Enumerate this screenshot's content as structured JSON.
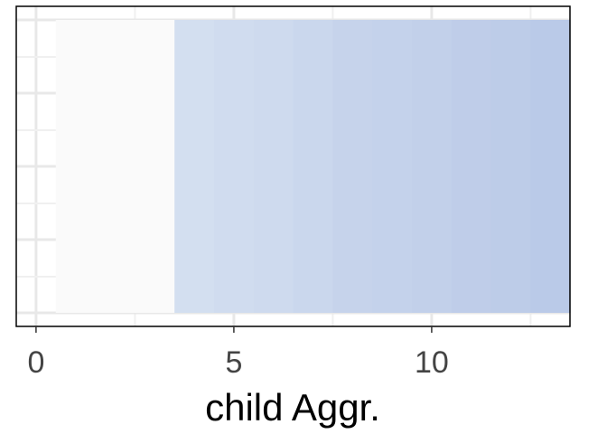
{
  "chart_data": {
    "type": "heatmap",
    "title": "",
    "xlabel": "child Aggr.",
    "ylabel": "",
    "xlim": [
      -0.5,
      14
    ],
    "x_ticks": [
      0,
      5,
      10
    ],
    "x_tick_labels": [
      "0",
      "5",
      "10"
    ],
    "grid": true,
    "legend": "none",
    "cells": [
      {
        "x": 1,
        "fill": "#fafafa"
      },
      {
        "x": 2,
        "fill": "#fafafa"
      },
      {
        "x": 3,
        "fill": "#fafafa"
      },
      {
        "x": 4,
        "fill": "#d3dff0"
      },
      {
        "x": 5,
        "fill": "#d0dcef"
      },
      {
        "x": 6,
        "fill": "#cedaee"
      },
      {
        "x": 7,
        "fill": "#cad7ed"
      },
      {
        "x": 8,
        "fill": "#c6d3eb"
      },
      {
        "x": 9,
        "fill": "#c4d2eb"
      },
      {
        "x": 10,
        "fill": "#c2d0ea"
      },
      {
        "x": 11,
        "fill": "#bfcde9"
      },
      {
        "x": 12,
        "fill": "#bdcce8"
      },
      {
        "x": 13,
        "fill": "#bacae8"
      }
    ],
    "colors": {
      "panel_background": "#ffffff",
      "grid_major": "#e8e8e8",
      "grid_minor": "#f0f0f0",
      "panel_border": "#000000"
    }
  }
}
